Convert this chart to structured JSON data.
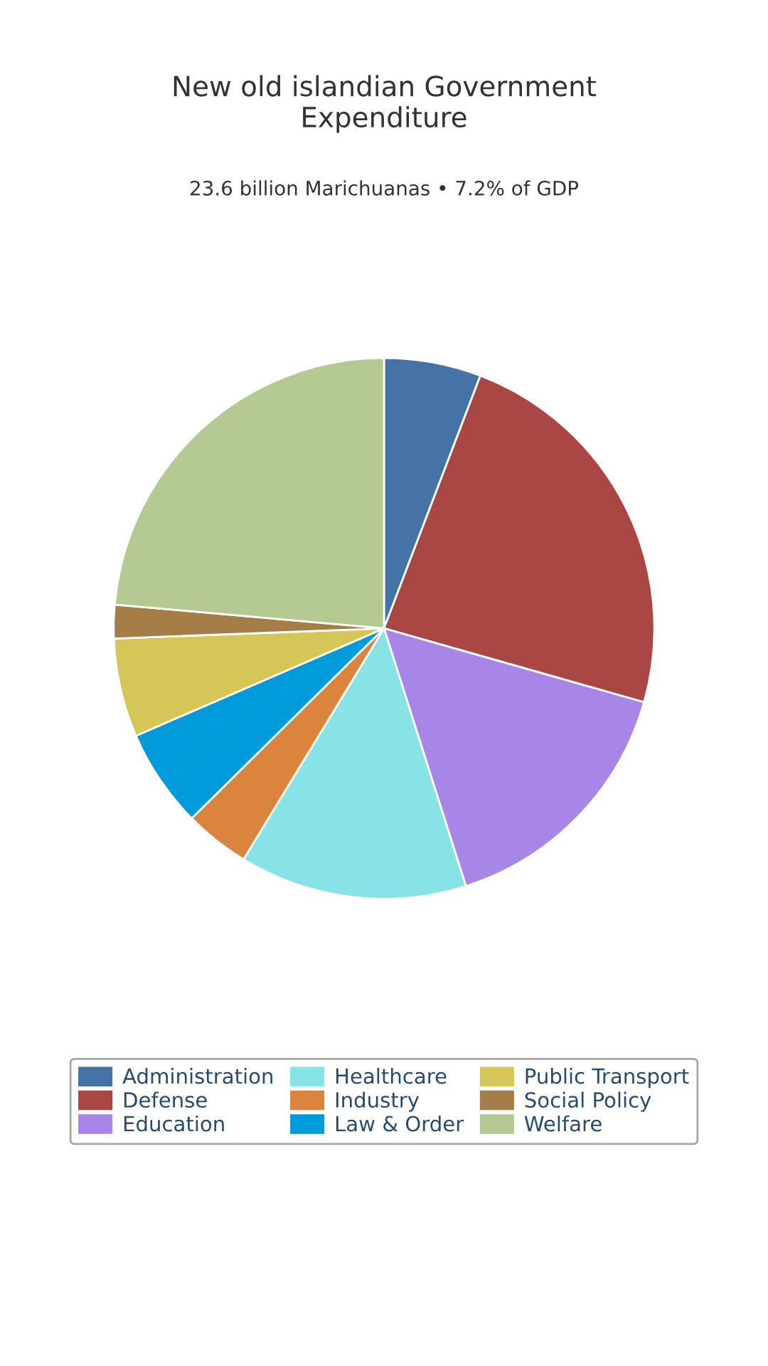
{
  "chart_data": {
    "type": "pie",
    "title": "New old islandian Government\nExpenditure",
    "subtitle": "23.6 billion Marichuanas • 7.2% of GDP",
    "categories": [
      "Administration",
      "Defense",
      "Education",
      "Healthcare",
      "Industry",
      "Law & Order",
      "Public Transport",
      "Social Policy",
      "Welfare"
    ],
    "values": [
      5.8,
      23.6,
      15.7,
      13.6,
      3.9,
      5.9,
      5.9,
      2.0,
      23.6
    ],
    "colors": [
      "#4572a7",
      "#aa4643",
      "#a786e8",
      "#88e3e6",
      "#db843d",
      "#009bdb",
      "#d4c757",
      "#a47d47",
      "#b5ca92"
    ],
    "legend": "bottom"
  }
}
